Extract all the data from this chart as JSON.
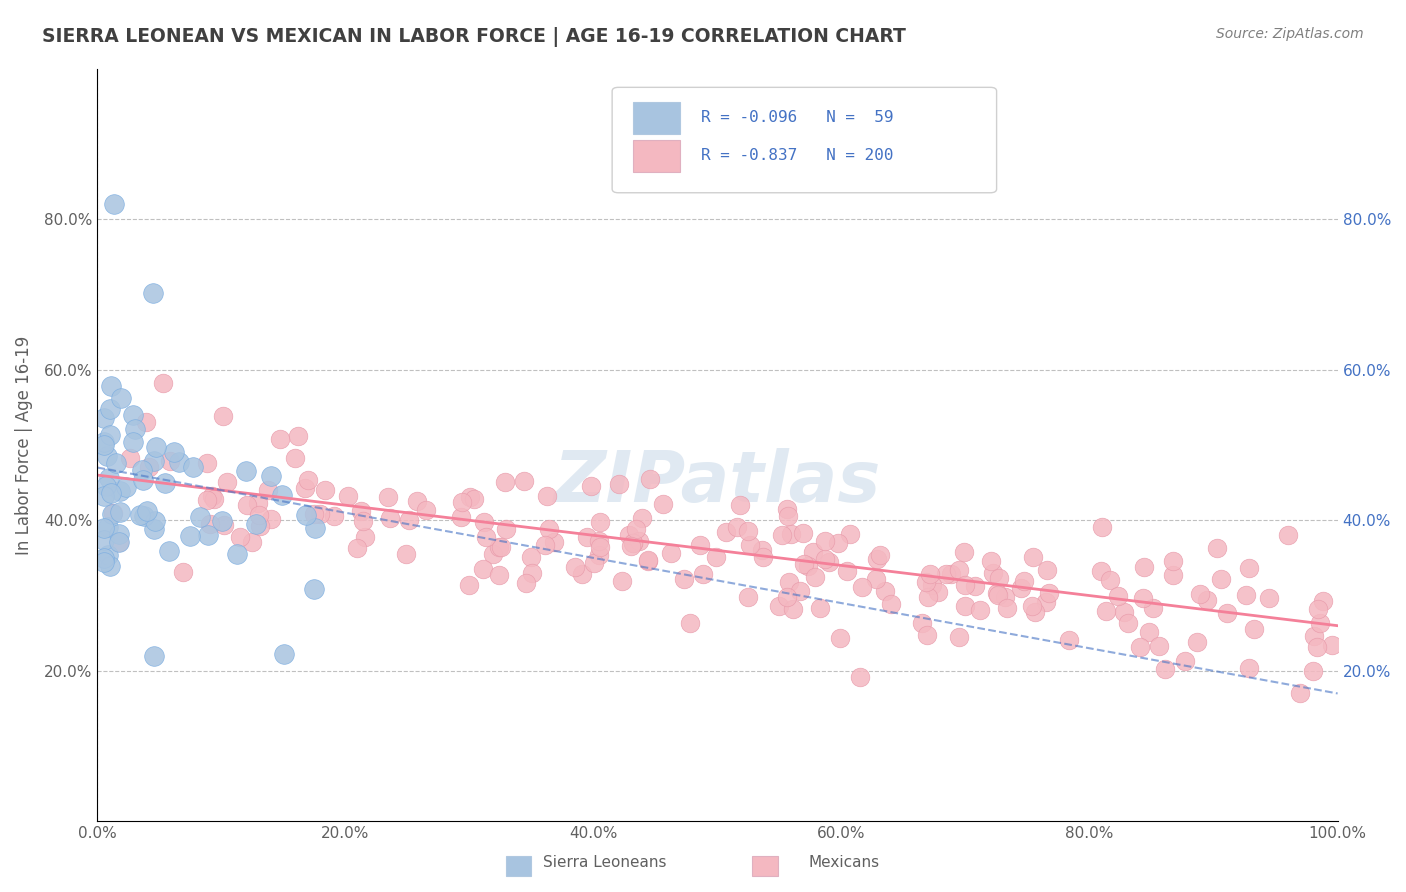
{
  "title": "SIERRA LEONEAN VS MEXICAN IN LABOR FORCE | AGE 16-19 CORRELATION CHART",
  "source_text": "Source: ZipAtlas.com",
  "ylabel": "In Labor Force | Age 16-19",
  "xlim": [
    0.0,
    1.0
  ],
  "ylim": [
    0.0,
    1.0
  ],
  "xticks": [
    0.0,
    0.2,
    0.4,
    0.6,
    0.8,
    1.0
  ],
  "xtick_labels": [
    "0.0%",
    "20.0%",
    "40.0%",
    "60.0%",
    "80.0%",
    "100.0%"
  ],
  "yticks": [
    0.2,
    0.4,
    0.6,
    0.8
  ],
  "ytick_labels": [
    "20.0%",
    "40.0%",
    "60.0%",
    "80.0%"
  ],
  "right_ytick_labels": [
    "20.0%",
    "40.0%",
    "60.0%",
    "80.0%"
  ],
  "right_yticks": [
    0.2,
    0.4,
    0.6,
    0.8
  ],
  "legend_r1": "R = -0.096",
  "legend_n1": "N =  59",
  "legend_r2": "R = -0.837",
  "legend_n2": "N = 200",
  "sierra_color": "#a8c4e0",
  "mexican_color": "#f4b8c1",
  "sierra_line_color": "#4472c4",
  "mexican_line_color": "#f48099",
  "background_color": "#ffffff",
  "grid_color": "#c0c0c0",
  "title_color": "#404040",
  "label_color": "#606060",
  "legend_text_color": "#4472c4",
  "sierra_R": -0.096,
  "mexican_R": -0.837,
  "sierra_N": 59,
  "mexican_N": 200,
  "mx_slope": -0.2,
  "mx_intercept": 0.46,
  "sl_slope_vis": -0.3,
  "sl_intercept_vis": 0.47
}
